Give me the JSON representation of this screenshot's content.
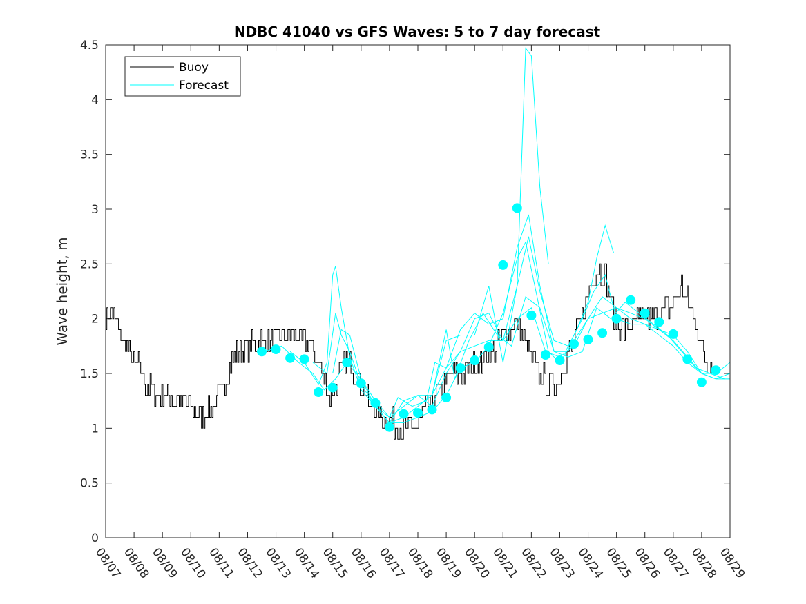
{
  "chart_data": {
    "type": "line",
    "title": "NDBC 41040 vs GFS Waves: 5 to 7 day forecast",
    "xlabel": "",
    "ylabel": "Wave height, m",
    "xlim": [
      0,
      22
    ],
    "ylim": [
      0,
      4.5
    ],
    "x_tick_labels": [
      "08/07",
      "08/08",
      "08/09",
      "08/10",
      "08/11",
      "08/12",
      "08/13",
      "08/14",
      "08/15",
      "08/16",
      "08/17",
      "08/18",
      "08/19",
      "08/20",
      "08/21",
      "08/22",
      "08/23",
      "08/24",
      "08/25",
      "08/26",
      "08/27",
      "08/28",
      "08/29"
    ],
    "y_ticks": [
      0,
      0.5,
      1,
      1.5,
      2,
      2.5,
      3,
      3.5,
      4,
      4.5
    ],
    "y_tick_labels": [
      "0",
      "0.5",
      "1",
      "1.5",
      "2",
      "2.5",
      "3",
      "3.5",
      "4",
      "4.5"
    ],
    "legend": {
      "location": "top-left",
      "entries": [
        "Buoy",
        "Forecast"
      ]
    },
    "colors": {
      "buoy": "#000000",
      "forecast": "#00ffff",
      "axis": "#262626"
    },
    "buoy": {
      "name": "Buoy",
      "anchors": [
        [
          0,
          2.0
        ],
        [
          0.2,
          2.05
        ],
        [
          0.4,
          1.95
        ],
        [
          0.6,
          1.8
        ],
        [
          0.8,
          1.7
        ],
        [
          1.0,
          1.6
        ],
        [
          1.2,
          1.55
        ],
        [
          1.4,
          1.4
        ],
        [
          1.6,
          1.35
        ],
        [
          1.8,
          1.3
        ],
        [
          2.0,
          1.3
        ],
        [
          2.2,
          1.3
        ],
        [
          2.5,
          1.25
        ],
        [
          2.8,
          1.25
        ],
        [
          3.0,
          1.2
        ],
        [
          3.2,
          1.15
        ],
        [
          3.4,
          1.1
        ],
        [
          3.6,
          1.15
        ],
        [
          3.8,
          1.2
        ],
        [
          4.0,
          1.3
        ],
        [
          4.2,
          1.45
        ],
        [
          4.4,
          1.6
        ],
        [
          4.6,
          1.7
        ],
        [
          4.8,
          1.7
        ],
        [
          5.0,
          1.75
        ],
        [
          5.3,
          1.8
        ],
        [
          5.6,
          1.8
        ],
        [
          6.0,
          1.8
        ],
        [
          6.3,
          1.85
        ],
        [
          6.6,
          1.85
        ],
        [
          6.9,
          1.8
        ],
        [
          7.2,
          1.75
        ],
        [
          7.5,
          1.6
        ],
        [
          7.7,
          1.45
        ],
        [
          7.9,
          1.3
        ],
        [
          8.1,
          1.4
        ],
        [
          8.3,
          1.55
        ],
        [
          8.5,
          1.6
        ],
        [
          8.7,
          1.55
        ],
        [
          8.9,
          1.45
        ],
        [
          9.1,
          1.35
        ],
        [
          9.3,
          1.2
        ],
        [
          9.5,
          1.15
        ],
        [
          9.8,
          1.1
        ],
        [
          10.1,
          1.05
        ],
        [
          10.4,
          1.0
        ],
        [
          10.7,
          0.98
        ],
        [
          11.0,
          1.05
        ],
        [
          11.2,
          1.15
        ],
        [
          11.5,
          1.25
        ],
        [
          11.8,
          1.35
        ],
        [
          12.0,
          1.45
        ],
        [
          12.3,
          1.5
        ],
        [
          12.6,
          1.5
        ],
        [
          12.9,
          1.55
        ],
        [
          13.2,
          1.6
        ],
        [
          13.5,
          1.65
        ],
        [
          13.8,
          1.75
        ],
        [
          14.1,
          1.85
        ],
        [
          14.4,
          1.95
        ],
        [
          14.7,
          1.85
        ],
        [
          15.0,
          1.65
        ],
        [
          15.3,
          1.5
        ],
        [
          15.6,
          1.4
        ],
        [
          15.9,
          1.4
        ],
        [
          16.2,
          1.6
        ],
        [
          16.5,
          1.8
        ],
        [
          16.8,
          2.05
        ],
        [
          17.1,
          2.3
        ],
        [
          17.3,
          2.45
        ],
        [
          17.6,
          2.4
        ],
        [
          17.8,
          2.15
        ],
        [
          18.0,
          1.95
        ],
        [
          18.3,
          1.9
        ],
        [
          18.6,
          1.95
        ],
        [
          18.9,
          2.0
        ],
        [
          19.2,
          2.0
        ],
        [
          19.5,
          2.05
        ],
        [
          19.8,
          2.1
        ],
        [
          20.1,
          2.2
        ],
        [
          20.3,
          2.3
        ],
        [
          20.5,
          2.15
        ],
        [
          20.8,
          1.95
        ],
        [
          21.0,
          1.75
        ],
        [
          21.2,
          1.6
        ],
        [
          21.4,
          1.55
        ]
      ]
    },
    "forecast_series": [
      {
        "name": "Forecast",
        "points": [
          [
            5.6,
            1.7
          ],
          [
            6.2,
            1.75
          ],
          [
            6.8,
            1.6
          ],
          [
            7.3,
            1.5
          ],
          [
            7.7,
            1.35
          ],
          [
            8.1,
            1.45
          ],
          [
            8.5,
            1.6
          ],
          [
            9.0,
            1.45
          ],
          [
            9.5,
            1.2
          ],
          [
            10.0,
            1.05
          ],
          [
            10.5,
            1.05
          ],
          [
            11.0,
            1.1
          ],
          [
            11.5,
            1.15
          ],
          [
            12.0,
            1.3
          ],
          [
            12.5,
            1.55
          ],
          [
            13.0,
            1.6
          ],
          [
            13.5,
            1.75
          ],
          [
            14.0,
            2.05
          ],
          [
            14.5,
            2.55
          ],
          [
            14.8,
            2.7
          ],
          [
            15.2,
            2.2
          ],
          [
            15.6,
            1.7
          ],
          [
            16.0,
            1.6
          ],
          [
            16.5,
            1.8
          ],
          [
            17.0,
            2.0
          ],
          [
            17.5,
            2.2
          ],
          [
            18.0,
            2.1
          ],
          [
            18.5,
            2.05
          ],
          [
            19.0,
            2.0
          ],
          [
            19.5,
            1.9
          ],
          [
            20.0,
            1.85
          ],
          [
            20.5,
            1.7
          ],
          [
            21.0,
            1.5
          ],
          [
            21.5,
            1.45
          ],
          [
            22.0,
            1.45
          ]
        ]
      },
      {
        "name": "Forecast",
        "points": [
          [
            6.5,
            1.7
          ],
          [
            7.0,
            1.6
          ],
          [
            7.5,
            1.4
          ],
          [
            7.8,
            1.6
          ],
          [
            8.0,
            2.4
          ],
          [
            8.1,
            2.48
          ],
          [
            8.3,
            2.1
          ],
          [
            8.6,
            1.65
          ],
          [
            9.0,
            1.35
          ],
          [
            9.5,
            1.2
          ],
          [
            10.0,
            1.1
          ],
          [
            10.5,
            1.2
          ],
          [
            11.0,
            1.3
          ],
          [
            11.5,
            1.2
          ],
          [
            12.0,
            1.5
          ],
          [
            12.5,
            1.7
          ],
          [
            13.0,
            2.0
          ],
          [
            13.5,
            2.05
          ],
          [
            14.0,
            1.8
          ],
          [
            14.5,
            2.3
          ],
          [
            14.8,
            4.47
          ],
          [
            15.0,
            4.4
          ],
          [
            15.3,
            3.2
          ],
          [
            15.6,
            2.5
          ]
        ]
      },
      {
        "name": "Forecast",
        "points": [
          [
            7.3,
            1.6
          ],
          [
            7.8,
            1.5
          ],
          [
            8.1,
            2.05
          ],
          [
            8.3,
            1.85
          ],
          [
            8.6,
            1.7
          ],
          [
            9.0,
            1.4
          ],
          [
            9.5,
            1.2
          ],
          [
            10.0,
            1.05
          ],
          [
            10.5,
            1.25
          ],
          [
            11.0,
            1.3
          ],
          [
            11.5,
            1.3
          ],
          [
            12.0,
            1.8
          ],
          [
            12.5,
            1.85
          ],
          [
            13.0,
            1.85
          ],
          [
            13.5,
            2.3
          ],
          [
            14.0,
            1.6
          ],
          [
            14.5,
            2.3
          ],
          [
            14.9,
            2.75
          ],
          [
            15.3,
            2.25
          ],
          [
            15.8,
            1.8
          ],
          [
            16.3,
            1.75
          ],
          [
            16.8,
            2.0
          ],
          [
            17.2,
            2.25
          ],
          [
            17.6,
            2.4
          ],
          [
            18.0,
            2.0
          ],
          [
            18.5,
            1.95
          ],
          [
            19.0,
            1.95
          ],
          [
            19.5,
            1.85
          ],
          [
            20.0,
            1.75
          ],
          [
            20.5,
            1.6
          ],
          [
            21.0,
            1.5
          ],
          [
            21.5,
            1.45
          ],
          [
            22.0,
            1.5
          ]
        ]
      },
      {
        "name": "Forecast",
        "points": [
          [
            8.0,
            1.5
          ],
          [
            8.3,
            1.9
          ],
          [
            8.6,
            1.85
          ],
          [
            9.0,
            1.45
          ],
          [
            9.5,
            1.25
          ],
          [
            10.0,
            1.1
          ],
          [
            10.3,
            1.28
          ],
          [
            10.8,
            1.2
          ],
          [
            11.3,
            1.25
          ],
          [
            11.6,
            1.6
          ],
          [
            12.0,
            1.55
          ],
          [
            12.5,
            1.9
          ],
          [
            13.0,
            2.05
          ],
          [
            13.5,
            1.95
          ],
          [
            14.0,
            2.0
          ],
          [
            14.5,
            2.65
          ],
          [
            14.9,
            2.95
          ],
          [
            15.3,
            2.3
          ],
          [
            15.8,
            1.7
          ],
          [
            16.2,
            1.7
          ],
          [
            16.6,
            1.9
          ],
          [
            17.0,
            2.15
          ],
          [
            17.3,
            2.55
          ],
          [
            17.6,
            2.85
          ],
          [
            17.9,
            2.6
          ]
        ]
      },
      {
        "name": "Forecast",
        "points": [
          [
            9.0,
            1.35
          ],
          [
            9.5,
            1.2
          ],
          [
            10.0,
            1.05
          ],
          [
            10.5,
            1.1
          ],
          [
            11.0,
            1.2
          ],
          [
            11.5,
            1.3
          ],
          [
            12.0,
            1.55
          ],
          [
            12.5,
            1.7
          ],
          [
            13.0,
            1.75
          ],
          [
            13.5,
            1.8
          ],
          [
            14.0,
            1.8
          ],
          [
            14.5,
            2.0
          ],
          [
            15.0,
            2.1
          ],
          [
            15.5,
            1.7
          ],
          [
            16.0,
            1.65
          ],
          [
            16.5,
            1.75
          ],
          [
            17.0,
            2.0
          ],
          [
            17.5,
            2.05
          ],
          [
            18.0,
            2.1
          ],
          [
            18.5,
            2.0
          ],
          [
            19.0,
            1.95
          ],
          [
            19.5,
            1.9
          ],
          [
            20.0,
            1.8
          ],
          [
            20.5,
            1.65
          ],
          [
            21.0,
            1.5
          ],
          [
            21.5,
            1.5
          ],
          [
            22.0,
            1.6
          ]
        ]
      },
      {
        "name": "Forecast",
        "points": [
          [
            11.0,
            1.2
          ],
          [
            11.5,
            1.3
          ],
          [
            12.0,
            1.9
          ],
          [
            12.3,
            1.45
          ],
          [
            12.8,
            1.8
          ],
          [
            13.3,
            2.05
          ],
          [
            13.8,
            1.85
          ],
          [
            14.3,
            1.75
          ],
          [
            14.8,
            2.2
          ],
          [
            15.3,
            2.1
          ],
          [
            15.8,
            1.7
          ],
          [
            16.3,
            1.65
          ],
          [
            16.8,
            1.7
          ],
          [
            17.3,
            2.1
          ],
          [
            17.8,
            2.0
          ],
          [
            18.3,
            2.15
          ],
          [
            18.8,
            2.05
          ],
          [
            19.3,
            1.95
          ],
          [
            19.8,
            1.85
          ],
          [
            20.3,
            1.7
          ],
          [
            20.8,
            1.55
          ],
          [
            21.3,
            1.5
          ],
          [
            21.8,
            1.45
          ]
        ]
      }
    ],
    "forecast_markers": {
      "name": "Forecast (daily)",
      "points": [
        [
          5.5,
          1.7
        ],
        [
          6.0,
          1.72
        ],
        [
          6.5,
          1.64
        ],
        [
          7.0,
          1.63
        ],
        [
          7.5,
          1.33
        ],
        [
          8.0,
          1.37
        ],
        [
          8.5,
          1.6
        ],
        [
          9.0,
          1.41
        ],
        [
          9.5,
          1.23
        ],
        [
          10.0,
          1.01
        ],
        [
          10.5,
          1.13
        ],
        [
          11.0,
          1.14
        ],
        [
          11.5,
          1.17
        ],
        [
          12.0,
          1.28
        ],
        [
          12.5,
          1.55
        ],
        [
          13.0,
          1.62
        ],
        [
          13.5,
          1.74
        ],
        [
          14.0,
          2.49
        ],
        [
          14.5,
          3.01
        ],
        [
          15.0,
          2.03
        ],
        [
          15.5,
          1.67
        ],
        [
          16.0,
          1.62
        ],
        [
          16.5,
          1.77
        ],
        [
          17.0,
          1.81
        ],
        [
          17.5,
          1.87
        ],
        [
          18.0,
          2.0
        ],
        [
          18.5,
          2.17
        ],
        [
          19.0,
          2.05
        ],
        [
          19.5,
          1.97
        ],
        [
          20.0,
          1.86
        ],
        [
          20.5,
          1.63
        ],
        [
          21.0,
          1.42
        ],
        [
          21.5,
          1.53
        ]
      ]
    }
  }
}
